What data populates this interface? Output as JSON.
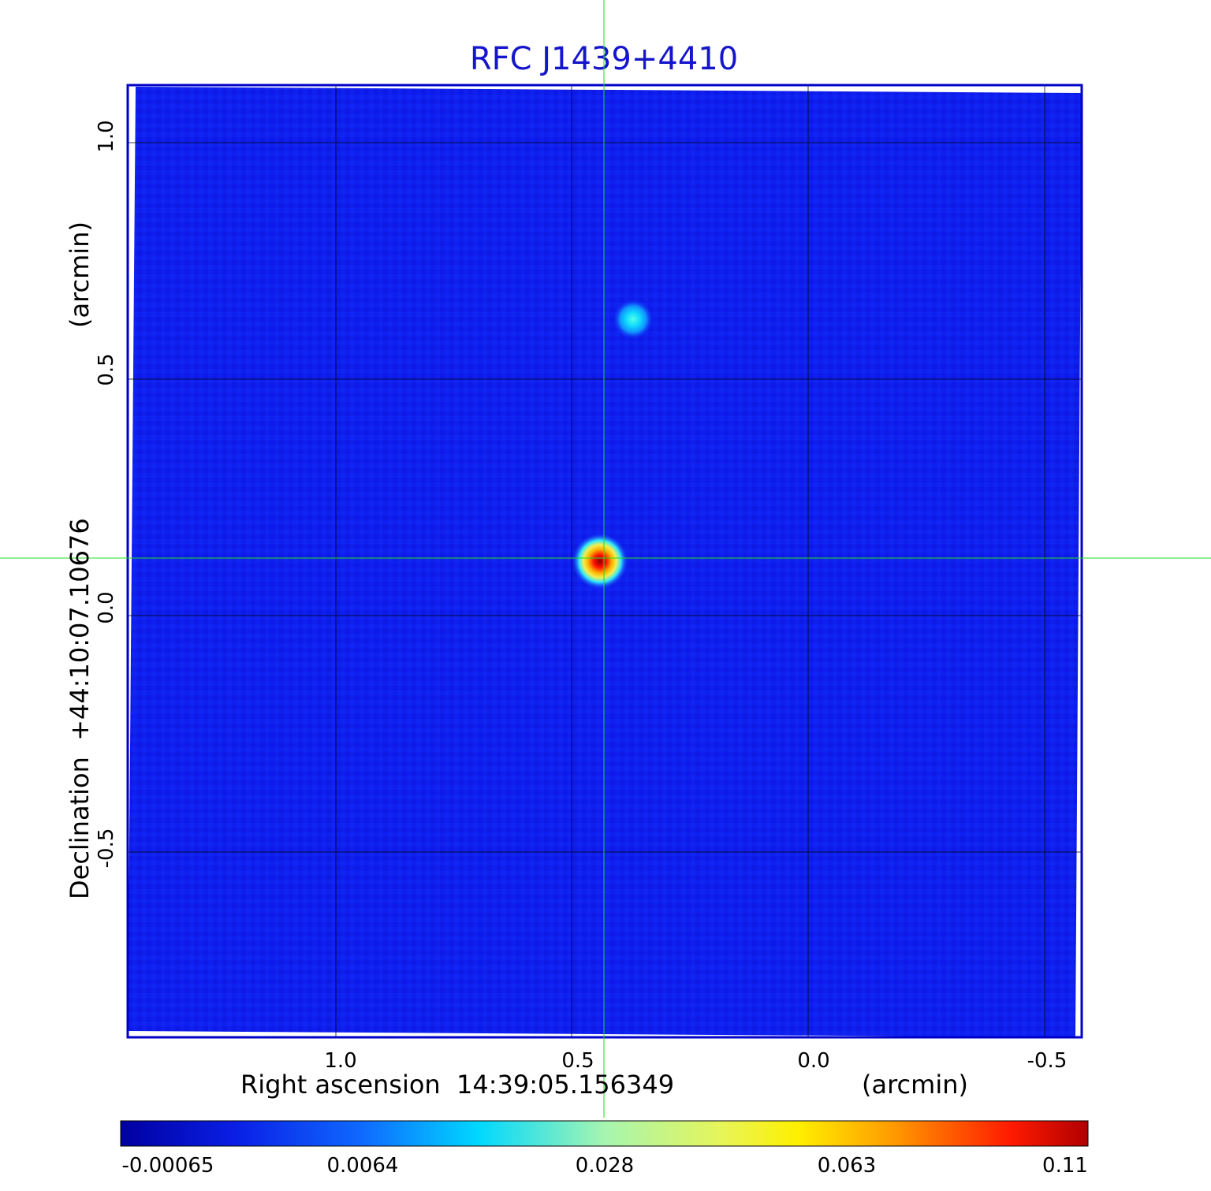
{
  "title": "RFC J1439+4410",
  "x_axis": {
    "label": "Right ascension  14:39:05.156349",
    "unit": "(arcmin)",
    "ticks": [
      "1.0",
      "0.5",
      "0.0",
      "-0.5"
    ]
  },
  "y_axis": {
    "label": "Declination  +44:10:07.10676",
    "unit": "(arcmin)",
    "ticks": [
      "1.0",
      "0.5",
      "0.0",
      "-0.5"
    ]
  },
  "colorbar": {
    "ticks": [
      "-0.00065",
      "0.0064",
      "0.028",
      "0.063",
      "0.11"
    ]
  },
  "colors": {
    "title": "#1515cc",
    "frame": "#0000c8",
    "background_map": "#0f1ff0",
    "crosshair": "#22dd22",
    "grid": "#000000"
  }
}
